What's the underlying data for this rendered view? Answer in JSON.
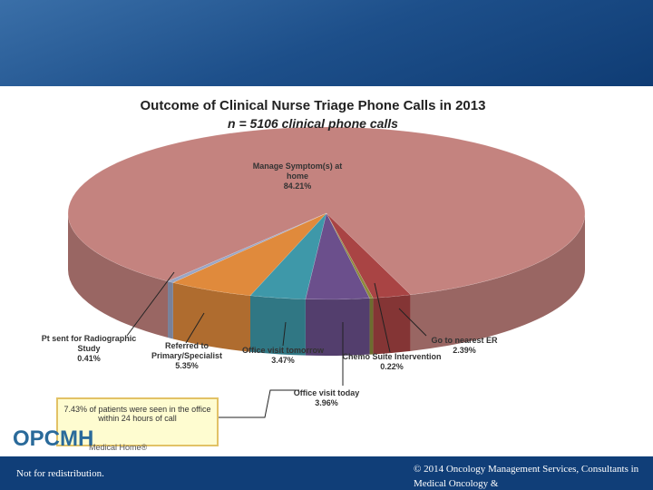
{
  "chart_data": {
    "type": "pie",
    "title": "Outcome of Clinical Nurse Triage Phone Calls in 2013",
    "subtitle": "n = 5106 clinical phone calls",
    "categories": [
      "Manage Symptom(s) at home",
      "Pt sent for Radiographic Study",
      "Referred to Primary/Specialist",
      "Office visit tomorrow",
      "Office visit today",
      "Chemo Suite Intervention",
      "Go to nearest ER"
    ],
    "values": [
      84.21,
      0.41,
      5.35,
      3.47,
      3.96,
      0.22,
      2.39
    ],
    "value_labels": [
      "84.21%",
      "0.41%",
      "5.35%",
      "3.47%",
      "3.96%",
      "0.22%",
      "2.39%"
    ],
    "colors": [
      "#c4837f",
      "#9aa6c6",
      "#e08a3c",
      "#3e98a9",
      "#6b4f8c",
      "#8c8a3c",
      "#a94444"
    ]
  },
  "slide": {
    "callout": "7.43% of patients were seen in the office within 24 hours of call",
    "logo": "OPCMH",
    "logo_sub": "Medical Home®",
    "footer_left": "Not for redistribution.",
    "footer_right": "© 2014 Oncology Management Services, Consultants in Medical Oncology &"
  }
}
